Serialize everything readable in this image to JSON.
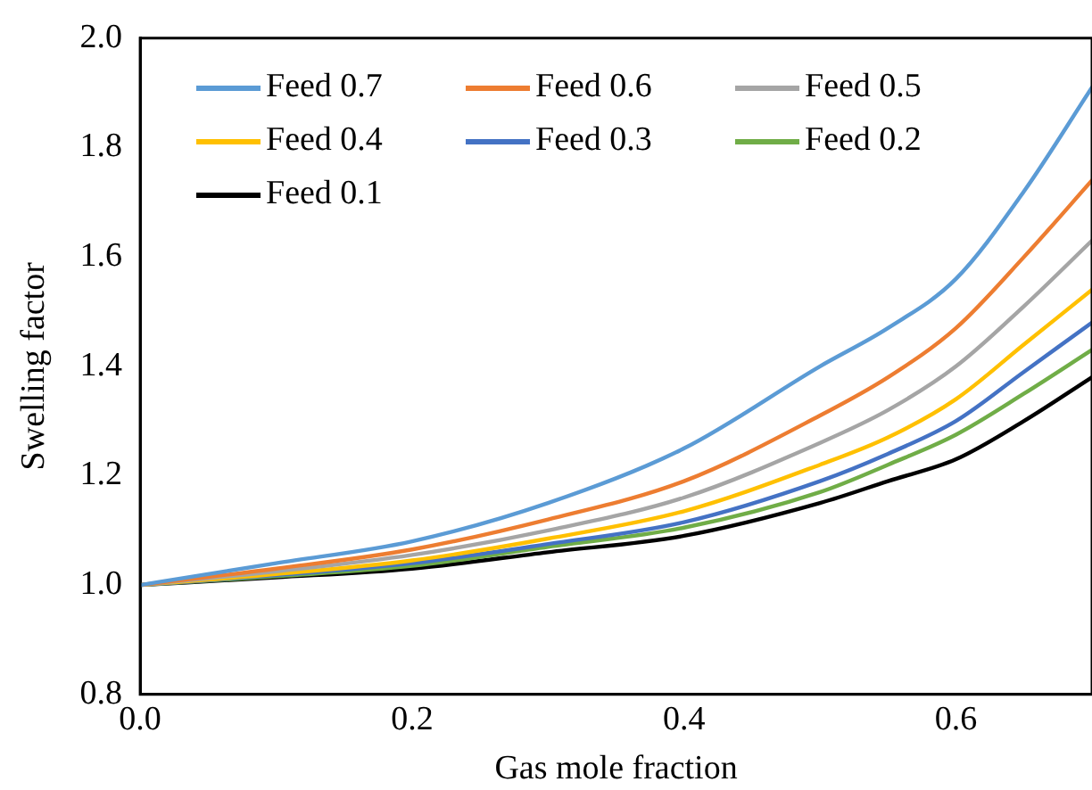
{
  "chart_data": {
    "type": "line",
    "xlabel": "Gas mole fraction",
    "ylabel": "Swelling factor",
    "x": [
      0,
      0.1,
      0.2,
      0.3,
      0.4,
      0.5,
      0.55,
      0.6,
      0.65,
      0.7
    ],
    "xlim": [
      0,
      0.7
    ],
    "xticks": [
      {
        "value": 0,
        "label": "0.0"
      },
      {
        "value": 0.2,
        "label": "0.2"
      },
      {
        "value": 0.4,
        "label": "0.4"
      },
      {
        "value": 0.6,
        "label": "0.6"
      }
    ],
    "ylim": [
      0.8,
      2.0
    ],
    "yticks": [
      {
        "value": 0.8,
        "label": "0.8"
      },
      {
        "value": 1.0,
        "label": "1.0"
      },
      {
        "value": 1.2,
        "label": "1.2"
      },
      {
        "value": 1.4,
        "label": "1.4"
      },
      {
        "value": 1.6,
        "label": "1.6"
      },
      {
        "value": 1.8,
        "label": "1.8"
      },
      {
        "value": 2.0,
        "label": "2.0"
      }
    ],
    "grid": false,
    "legend": "top left",
    "marker": "none",
    "line_style": "solid",
    "series": [
      {
        "name": "Feed 0.7",
        "color": "#5b9bd5",
        "values": [
          1.0,
          1.04,
          1.08,
          1.15,
          1.25,
          1.4,
          1.47,
          1.56,
          1.72,
          1.91
        ]
      },
      {
        "name": "Feed 0.6",
        "color": "#ed7d31",
        "values": [
          1.0,
          1.03,
          1.065,
          1.12,
          1.19,
          1.31,
          1.38,
          1.47,
          1.6,
          1.74
        ]
      },
      {
        "name": "Feed 0.5",
        "color": "#a5a5a5",
        "values": [
          1.0,
          1.025,
          1.055,
          1.1,
          1.16,
          1.26,
          1.32,
          1.4,
          1.51,
          1.63
        ]
      },
      {
        "name": "Feed 0.4",
        "color": "#ffc000",
        "values": [
          1.0,
          1.02,
          1.045,
          1.085,
          1.135,
          1.22,
          1.27,
          1.34,
          1.44,
          1.54
        ]
      },
      {
        "name": "Feed 0.3",
        "color": "#4472c4",
        "values": [
          1.0,
          1.018,
          1.04,
          1.075,
          1.115,
          1.19,
          1.24,
          1.3,
          1.39,
          1.48
        ]
      },
      {
        "name": "Feed 0.2",
        "color": "#70ad47",
        "values": [
          1.0,
          1.016,
          1.035,
          1.07,
          1.105,
          1.17,
          1.22,
          1.275,
          1.35,
          1.43
        ]
      },
      {
        "name": "Feed 0.1",
        "color": "#000000",
        "values": [
          1.0,
          1.014,
          1.03,
          1.06,
          1.09,
          1.15,
          1.19,
          1.23,
          1.3,
          1.38
        ]
      }
    ]
  }
}
